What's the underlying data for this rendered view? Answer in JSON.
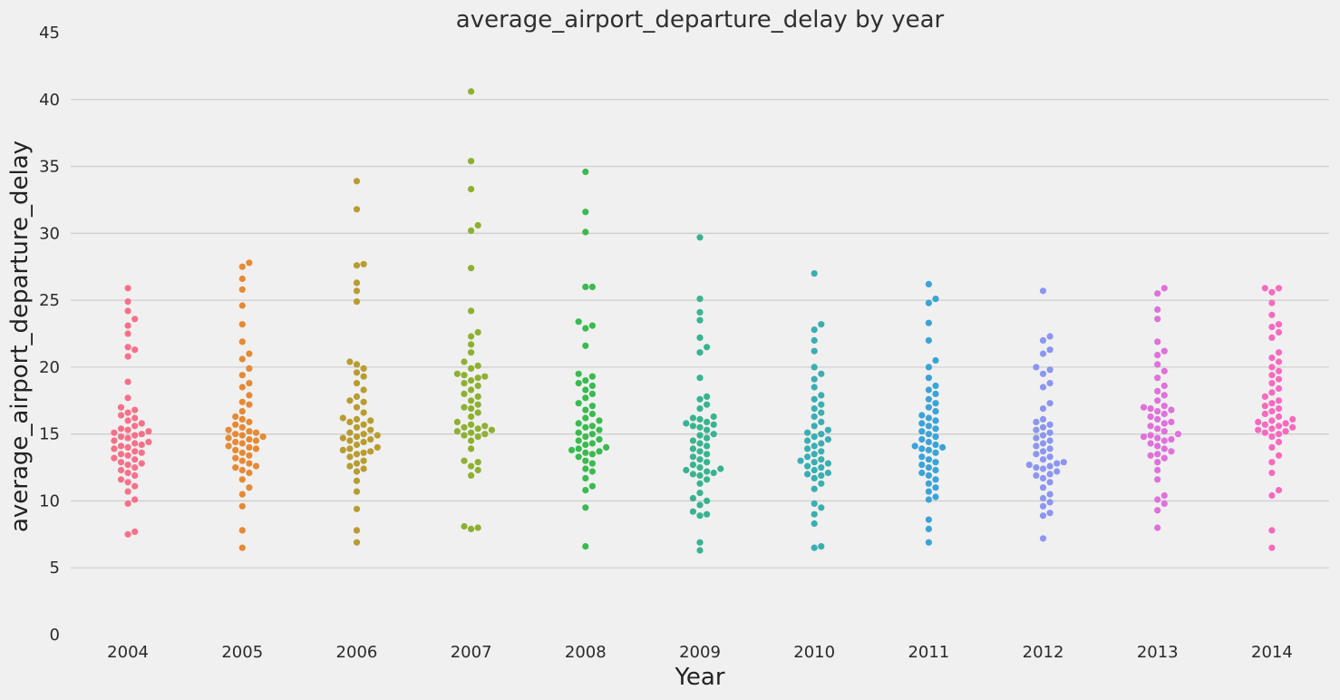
{
  "chart_data": {
    "type": "scatter",
    "subtype": "swarm",
    "title": "average_airport_departure_delay by year",
    "xlabel": "Year",
    "ylabel": "average_airport_departure_delay",
    "categories": [
      "2004",
      "2005",
      "2006",
      "2007",
      "2008",
      "2009",
      "2010",
      "2011",
      "2012",
      "2013",
      "2014"
    ],
    "ylim": [
      0,
      45
    ],
    "yticks": [
      0,
      5,
      10,
      15,
      20,
      25,
      30,
      35,
      40,
      45
    ],
    "grid": "horizontal",
    "series": [
      {
        "category": "2004",
        "color": "#f77189",
        "values": [
          7.5,
          7.7,
          9.8,
          10.1,
          10.7,
          11.1,
          11.4,
          11.6,
          11.9,
          12.1,
          12.3,
          12.5,
          12.7,
          12.8,
          12.9,
          13.1,
          13.2,
          13.4,
          13.5,
          13.6,
          13.7,
          13.9,
          14.0,
          14.1,
          14.2,
          14.3,
          14.4,
          14.5,
          14.7,
          14.8,
          14.9,
          15.0,
          15.1,
          15.2,
          15.3,
          15.4,
          15.6,
          15.8,
          16.0,
          16.2,
          16.4,
          16.6,
          16.8,
          17.0,
          17.7,
          18.9,
          20.8,
          21.3,
          21.5,
          22.5,
          23.1,
          23.6,
          24.2,
          24.9,
          25.9
        ]
      },
      {
        "category": "2005",
        "color": "#e48a35",
        "values": [
          6.5,
          7.8,
          9.6,
          10.5,
          11.0,
          11.6,
          12.1,
          12.3,
          12.5,
          12.6,
          12.8,
          13.0,
          13.2,
          13.4,
          13.6,
          13.8,
          13.9,
          14.0,
          14.1,
          14.3,
          14.4,
          14.5,
          14.6,
          14.7,
          14.8,
          14.9,
          15.0,
          15.1,
          15.2,
          15.3,
          15.5,
          15.7,
          15.9,
          16.1,
          16.3,
          16.7,
          17.2,
          17.4,
          17.9,
          18.5,
          18.8,
          19.4,
          19.9,
          20.6,
          21.0,
          21.9,
          23.2,
          24.6,
          25.8,
          26.6,
          27.5,
          27.8
        ]
      },
      {
        "category": "2006",
        "color": "#b89c2f",
        "values": [
          6.9,
          7.8,
          9.4,
          10.7,
          11.5,
          12.2,
          12.4,
          12.6,
          12.8,
          13.0,
          13.3,
          13.5,
          13.6,
          13.7,
          13.8,
          13.9,
          14.0,
          14.2,
          14.4,
          14.5,
          14.6,
          14.7,
          14.8,
          14.9,
          15.0,
          15.1,
          15.3,
          15.5,
          15.7,
          15.9,
          16.0,
          16.1,
          16.2,
          16.6,
          17.0,
          17.4,
          17.5,
          17.8,
          18.3,
          18.8,
          19.3,
          19.6,
          19.9,
          20.2,
          20.4,
          24.9,
          25.7,
          26.3,
          27.6,
          27.7,
          31.8,
          33.9
        ]
      },
      {
        "category": "2007",
        "color": "#8eb031",
        "values": [
          7.9,
          8.0,
          8.1,
          11.9,
          12.3,
          12.6,
          12.9,
          13.0,
          13.9,
          14.5,
          14.8,
          14.9,
          15.0,
          15.1,
          15.2,
          15.3,
          15.4,
          15.5,
          15.6,
          15.7,
          15.9,
          16.3,
          16.6,
          16.9,
          17.0,
          17.2,
          17.5,
          17.8,
          18.0,
          18.3,
          18.6,
          18.8,
          19.0,
          19.2,
          19.3,
          19.4,
          19.5,
          19.9,
          20.1,
          20.4,
          21.1,
          21.7,
          22.3,
          22.6,
          24.2,
          27.4,
          30.2,
          30.6,
          33.3,
          35.4,
          40.6
        ]
      },
      {
        "category": "2008",
        "color": "#3aba4f",
        "values": [
          6.6,
          9.5,
          10.8,
          11.1,
          11.7,
          12.2,
          12.4,
          12.8,
          13.0,
          13.3,
          13.5,
          13.6,
          13.7,
          13.8,
          13.9,
          14.0,
          14.2,
          14.3,
          14.5,
          14.6,
          14.8,
          15.0,
          15.1,
          15.3,
          15.5,
          15.6,
          15.8,
          16.0,
          16.2,
          16.5,
          16.8,
          17.1,
          17.3,
          17.7,
          18.0,
          18.3,
          18.6,
          18.8,
          19.0,
          19.3,
          19.5,
          21.6,
          22.9,
          23.1,
          23.4,
          26.0,
          26.0,
          30.1,
          31.6,
          34.6
        ]
      },
      {
        "category": "2009",
        "color": "#39b38f",
        "values": [
          6.3,
          6.9,
          8.9,
          9.0,
          9.2,
          9.7,
          10.0,
          10.2,
          10.6,
          11.3,
          11.6,
          11.9,
          12.0,
          12.1,
          12.2,
          12.3,
          12.4,
          12.5,
          12.7,
          12.9,
          13.1,
          13.3,
          13.5,
          13.7,
          13.9,
          14.1,
          14.3,
          14.5,
          14.7,
          14.9,
          15.0,
          15.3,
          15.5,
          15.6,
          15.7,
          15.8,
          15.9,
          16.1,
          16.2,
          16.3,
          16.9,
          17.2,
          17.6,
          17.8,
          19.2,
          21.1,
          21.5,
          22.2,
          23.5,
          24.1,
          25.1,
          29.7
        ]
      },
      {
        "category": "2010",
        "color": "#3aaeb2",
        "values": [
          6.5,
          6.6,
          8.3,
          9.0,
          9.5,
          9.8,
          10.9,
          11.3,
          11.7,
          11.9,
          12.0,
          12.1,
          12.3,
          12.5,
          12.6,
          12.8,
          12.9,
          13.0,
          13.1,
          13.3,
          13.5,
          13.7,
          13.9,
          14.1,
          14.3,
          14.5,
          14.6,
          14.8,
          15.0,
          15.1,
          15.3,
          15.6,
          15.9,
          16.3,
          16.6,
          16.9,
          17.2,
          17.6,
          17.9,
          18.5,
          19.1,
          19.5,
          20.0,
          21.2,
          22.0,
          22.8,
          23.2,
          27.0
        ]
      },
      {
        "category": "2011",
        "color": "#3ba3d6",
        "values": [
          6.9,
          7.9,
          8.6,
          10.1,
          10.3,
          10.7,
          11.0,
          11.3,
          11.6,
          11.9,
          12.1,
          12.3,
          12.5,
          12.7,
          12.9,
          13.1,
          13.3,
          13.6,
          13.8,
          13.9,
          14.0,
          14.1,
          14.2,
          14.4,
          14.6,
          14.8,
          15.0,
          15.2,
          15.4,
          15.6,
          15.8,
          16.0,
          16.2,
          16.4,
          16.7,
          17.0,
          17.3,
          17.6,
          18.0,
          18.3,
          18.6,
          19.2,
          20.0,
          20.5,
          22.0,
          23.3,
          24.8,
          25.1,
          26.2
        ]
      },
      {
        "category": "2012",
        "color": "#8c96f0",
        "values": [
          7.2,
          8.9,
          9.1,
          9.6,
          9.9,
          10.2,
          10.5,
          11.0,
          11.4,
          11.7,
          11.9,
          12.0,
          12.2,
          12.4,
          12.5,
          12.6,
          12.7,
          12.8,
          12.9,
          13.1,
          13.3,
          13.5,
          13.7,
          13.9,
          14.1,
          14.3,
          14.5,
          14.7,
          14.9,
          15.1,
          15.3,
          15.5,
          15.7,
          15.9,
          16.1,
          16.9,
          17.3,
          18.5,
          18.8,
          19.5,
          19.8,
          20.0,
          21.0,
          21.3,
          22.0,
          22.3,
          25.7
        ]
      },
      {
        "category": "2013",
        "color": "#e070db",
        "values": [
          8.0,
          9.3,
          9.8,
          10.1,
          10.4,
          11.6,
          12.3,
          12.9,
          13.2,
          13.4,
          13.5,
          13.7,
          13.9,
          14.1,
          14.3,
          14.5,
          14.6,
          14.7,
          14.8,
          14.9,
          15.0,
          15.2,
          15.4,
          15.6,
          15.8,
          15.9,
          16.1,
          16.3,
          16.5,
          16.7,
          16.8,
          16.9,
          17.0,
          17.1,
          17.5,
          17.9,
          18.2,
          18.6,
          19.2,
          19.7,
          20.2,
          20.9,
          21.2,
          21.9,
          23.6,
          24.3,
          25.5,
          25.9
        ]
      },
      {
        "category": "2014",
        "color": "#f76bbe",
        "values": [
          6.5,
          7.8,
          10.4,
          10.8,
          12.1,
          12.9,
          13.4,
          14.0,
          14.4,
          14.8,
          15.0,
          15.1,
          15.2,
          15.3,
          15.4,
          15.5,
          15.6,
          15.7,
          15.8,
          15.9,
          16.0,
          16.1,
          16.3,
          16.5,
          16.7,
          16.9,
          17.1,
          17.3,
          17.5,
          17.8,
          18.1,
          18.4,
          18.8,
          19.1,
          19.4,
          19.7,
          20.0,
          20.4,
          20.7,
          21.1,
          22.2,
          22.6,
          23.0,
          23.2,
          23.9,
          24.8,
          25.6,
          25.9,
          25.9
        ]
      }
    ]
  }
}
